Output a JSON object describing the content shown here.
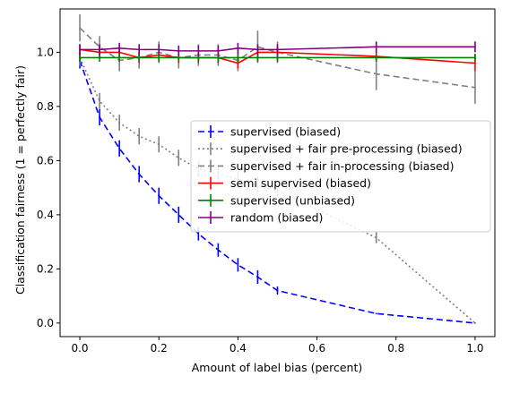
{
  "chart_data": {
    "type": "line",
    "xlabel": "Amount of label bias (percent)",
    "ylabel": "Classification fairness (1 = perfectly fair)",
    "xlim": [
      -0.05,
      1.05
    ],
    "ylim": [
      -0.05,
      1.16
    ],
    "xticks": [
      0.0,
      0.2,
      0.4,
      0.6,
      0.8,
      1.0
    ],
    "xtick_labels": [
      "0.0",
      "0.2",
      "0.4",
      "0.6",
      "0.8",
      "1.0"
    ],
    "yticks": [
      0.0,
      0.2,
      0.4,
      0.6,
      0.8,
      1.0
    ],
    "ytick_labels": [
      "0.0",
      "0.2",
      "0.4",
      "0.6",
      "0.8",
      "1.0"
    ],
    "grid": false,
    "legend_position": "center-right",
    "series": [
      {
        "name": "supervised (biased)",
        "color": "#0000ff",
        "linestyle": "dashed",
        "x": [
          0.0,
          0.05,
          0.1,
          0.15,
          0.2,
          0.25,
          0.3,
          0.35,
          0.4,
          0.45,
          0.5,
          0.75,
          1.0
        ],
        "y": [
          0.97,
          0.76,
          0.645,
          0.55,
          0.47,
          0.4,
          0.33,
          0.27,
          0.215,
          0.17,
          0.12,
          0.035,
          0.0
        ],
        "err": [
          0.03,
          0.03,
          0.03,
          0.03,
          0.03,
          0.03,
          0.025,
          0.025,
          0.025,
          0.025,
          0.015,
          0.0,
          0.0
        ]
      },
      {
        "name": "supervised + fair pre-processing (biased)",
        "color": "#808080",
        "linestyle": "dotted",
        "x": [
          0.0,
          0.05,
          0.1,
          0.15,
          0.2,
          0.25,
          0.3,
          0.35,
          0.4,
          0.45,
          0.5,
          0.75,
          1.0
        ],
        "y": [
          0.98,
          0.82,
          0.74,
          0.69,
          0.66,
          0.61,
          0.57,
          0.55,
          0.53,
          0.51,
          0.49,
          0.315,
          0.0
        ],
        "err": [
          0.03,
          0.03,
          0.03,
          0.03,
          0.03,
          0.03,
          0.03,
          0.03,
          0.03,
          0.03,
          0.03,
          0.02,
          0.0
        ]
      },
      {
        "name": "supervised + fair in-processing (biased)",
        "color": "#808080",
        "linestyle": "dashed",
        "x": [
          0.0,
          0.05,
          0.1,
          0.15,
          0.2,
          0.25,
          0.3,
          0.35,
          0.4,
          0.45,
          0.5,
          0.75,
          1.0
        ],
        "y": [
          1.09,
          1.02,
          0.97,
          0.98,
          1.0,
          0.98,
          0.99,
          0.99,
          0.97,
          1.02,
          1.0,
          0.92,
          0.87
        ],
        "err": [
          0.05,
          0.04,
          0.04,
          0.04,
          0.04,
          0.04,
          0.04,
          0.04,
          0.04,
          0.06,
          0.04,
          0.06,
          0.06
        ]
      },
      {
        "name": "semi supervised (biased)",
        "color": "#ff0000",
        "linestyle": "solid",
        "x": [
          0.0,
          0.05,
          0.1,
          0.15,
          0.2,
          0.25,
          0.3,
          0.35,
          0.4,
          0.45,
          0.5,
          0.75,
          1.0
        ],
        "y": [
          1.01,
          1.0,
          1.0,
          0.98,
          0.99,
          0.98,
          0.98,
          0.98,
          0.96,
          1.0,
          1.0,
          0.985,
          0.96
        ],
        "err": [
          0.02,
          0.02,
          0.02,
          0.02,
          0.02,
          0.02,
          0.02,
          0.02,
          0.02,
          0.02,
          0.02,
          0.02,
          0.03
        ]
      },
      {
        "name": "supervised (unbiased)",
        "color": "#008000",
        "linestyle": "solid",
        "x": [
          0.0,
          0.05,
          0.1,
          0.15,
          0.2,
          0.25,
          0.3,
          0.35,
          0.4,
          0.45,
          0.5,
          0.75,
          1.0
        ],
        "y": [
          0.98,
          0.98,
          0.98,
          0.98,
          0.98,
          0.98,
          0.98,
          0.98,
          0.98,
          0.98,
          0.98,
          0.98,
          0.98
        ],
        "err": [
          0.015,
          0.015,
          0.015,
          0.015,
          0.015,
          0.015,
          0.015,
          0.015,
          0.015,
          0.015,
          0.015,
          0.015,
          0.015
        ]
      },
      {
        "name": "random (biased)",
        "color": "#800080",
        "linestyle": "solid",
        "x": [
          0.0,
          0.05,
          0.1,
          0.15,
          0.2,
          0.25,
          0.3,
          0.35,
          0.4,
          0.45,
          0.5,
          0.75,
          1.0
        ],
        "y": [
          1.01,
          1.01,
          1.015,
          1.01,
          1.01,
          1.005,
          1.005,
          1.005,
          1.015,
          1.01,
          1.01,
          1.02,
          1.02
        ],
        "err": [
          0.02,
          0.02,
          0.02,
          0.02,
          0.02,
          0.02,
          0.02,
          0.02,
          0.02,
          0.02,
          0.02,
          0.02,
          0.02
        ]
      }
    ]
  }
}
